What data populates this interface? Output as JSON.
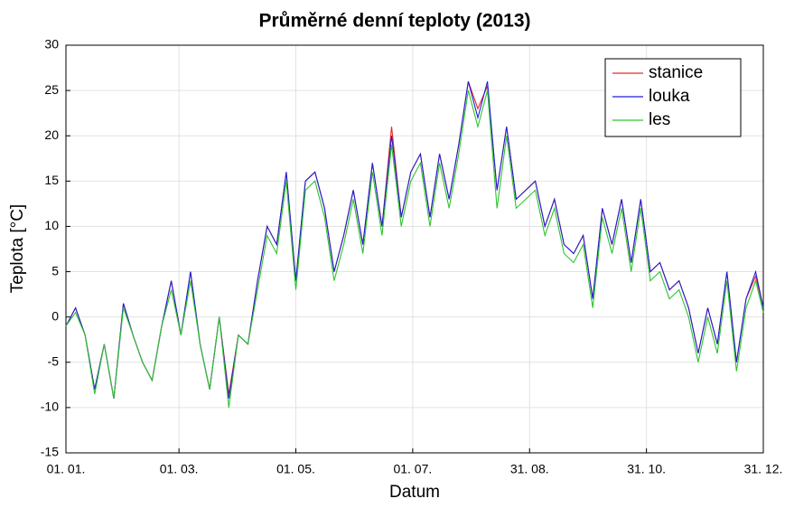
{
  "chart_data": {
    "type": "line",
    "title": "Průměrné denní teploty (2013)",
    "x_label": "Datum",
    "y_label": "Teplota [°C]",
    "x": [
      0,
      5,
      10,
      15,
      20,
      25,
      30,
      35,
      40,
      45,
      50,
      55,
      60,
      65,
      70,
      75,
      80,
      85,
      90,
      95,
      100,
      105,
      110,
      115,
      120,
      125,
      130,
      135,
      140,
      145,
      150,
      155,
      160,
      165,
      170,
      175,
      180,
      185,
      190,
      195,
      200,
      205,
      210,
      215,
      220,
      225,
      230,
      235,
      240,
      245,
      250,
      255,
      260,
      265,
      270,
      275,
      280,
      285,
      290,
      295,
      300,
      305,
      310,
      315,
      320,
      325,
      330,
      335,
      340,
      345,
      350,
      355,
      360,
      364
    ],
    "series": [
      {
        "name": "stanice",
        "color": "#e8262b",
        "values": [
          -1,
          1,
          -2,
          -8,
          -3,
          -9,
          1.5,
          -2,
          -5,
          -7,
          -1,
          4,
          -2,
          5,
          -3,
          -8,
          0,
          -8.5,
          -2,
          -3,
          4,
          10,
          8,
          16,
          4,
          15,
          16,
          12,
          5,
          9,
          14,
          8,
          17,
          10,
          21,
          11,
          16,
          18,
          11,
          18,
          13,
          19,
          26,
          23,
          25.5,
          14,
          21,
          13,
          14,
          15,
          10,
          13,
          8,
          7,
          9,
          2,
          12,
          8,
          13,
          6,
          13,
          5,
          6,
          3,
          4,
          1,
          -4,
          1,
          -3,
          5,
          -5,
          2,
          4.5,
          1
        ]
      },
      {
        "name": "louka",
        "color": "#1f1fd6",
        "values": [
          -1,
          1,
          -2,
          -8,
          -3,
          -9,
          1.5,
          -2,
          -5,
          -7,
          -1,
          4,
          -2,
          5,
          -3,
          -8,
          0,
          -9,
          -2,
          -3,
          4,
          10,
          8,
          16,
          4,
          15,
          16,
          12,
          5,
          9,
          14,
          8,
          17,
          10,
          20,
          11,
          16,
          18,
          11,
          18,
          13,
          19,
          26,
          22,
          26,
          14,
          21,
          13,
          14,
          15,
          10,
          13,
          8,
          7,
          9,
          2,
          12,
          8,
          13,
          6,
          13,
          5,
          6,
          3,
          4,
          1,
          -4,
          1,
          -3,
          5,
          -5,
          2,
          5,
          1
        ]
      },
      {
        "name": "les",
        "color": "#2ec42e",
        "values": [
          -1,
          0.5,
          -2,
          -8.5,
          -3,
          -9,
          1,
          -2,
          -5,
          -7,
          -1,
          3,
          -2,
          4,
          -3,
          -8,
          0,
          -10,
          -2,
          -3,
          3,
          9,
          7,
          15,
          3,
          14,
          15,
          11,
          4,
          8,
          13,
          7,
          16,
          9,
          19,
          10,
          15,
          17,
          10,
          17,
          12,
          18,
          25,
          21,
          25,
          12,
          20,
          12,
          13,
          14,
          9,
          12,
          7,
          6,
          8,
          1,
          11,
          7,
          12,
          5,
          12,
          4,
          5,
          2,
          3,
          0,
          -5,
          0,
          -4,
          4,
          -6,
          1,
          4,
          0.5
        ]
      }
    ],
    "xlim": [
      0,
      364
    ],
    "xticks": [
      {
        "value": 0,
        "label": "01. 01."
      },
      {
        "value": 59,
        "label": "01. 03."
      },
      {
        "value": 120,
        "label": "01. 05."
      },
      {
        "value": 181,
        "label": "01. 07."
      },
      {
        "value": 242,
        "label": "31. 08."
      },
      {
        "value": 303,
        "label": "31. 10."
      },
      {
        "value": 364,
        "label": "31. 12."
      }
    ],
    "ylim": [
      -15,
      30
    ],
    "yticks": [
      -15,
      -10,
      -5,
      0,
      5,
      10,
      15,
      20,
      25,
      30
    ],
    "grid": true,
    "legend": "upper right"
  }
}
